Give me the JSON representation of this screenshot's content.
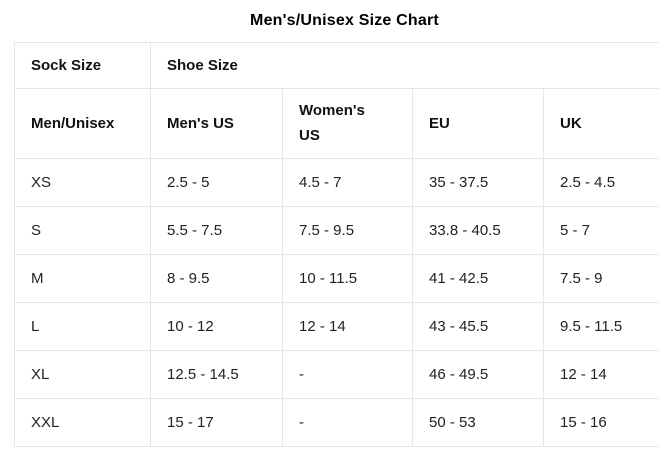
{
  "title": "Men's/Unisex Size Chart",
  "table": {
    "group_headers": {
      "sock": "Sock Size",
      "shoe": "Shoe Size"
    },
    "columns": [
      "Men/Unisex",
      "Men's US",
      "Women's US",
      "EU",
      "UK"
    ],
    "rows": [
      {
        "size": "XS",
        "mens_us": "2.5 - 5",
        "womens_us": "4.5 - 7",
        "eu": "35 - 37.5",
        "uk": "2.5 - 4.5"
      },
      {
        "size": "S",
        "mens_us": "5.5 - 7.5",
        "womens_us": "7.5 - 9.5",
        "eu": "33.8 - 40.5",
        "uk": "5 - 7"
      },
      {
        "size": "M",
        "mens_us": "8 - 9.5",
        "womens_us": "10 - 11.5",
        "eu": "41 - 42.5",
        "uk": "7.5 - 9"
      },
      {
        "size": "L",
        "mens_us": "10 - 12",
        "womens_us": "12 - 14",
        "eu": "43 - 45.5",
        "uk": "9.5 - 11.5"
      },
      {
        "size": "XL",
        "mens_us": "12.5 - 14.5",
        "womens_us": "-",
        "eu": "46 - 49.5",
        "uk": "12 - 14"
      },
      {
        "size": "XXL",
        "mens_us": "15 - 17",
        "womens_us": "-",
        "eu": "50 - 53",
        "uk": "15 - 16"
      }
    ]
  },
  "colors": {
    "background": "#ffffff",
    "border": "#eae6df",
    "text": "#1c1c1e"
  }
}
